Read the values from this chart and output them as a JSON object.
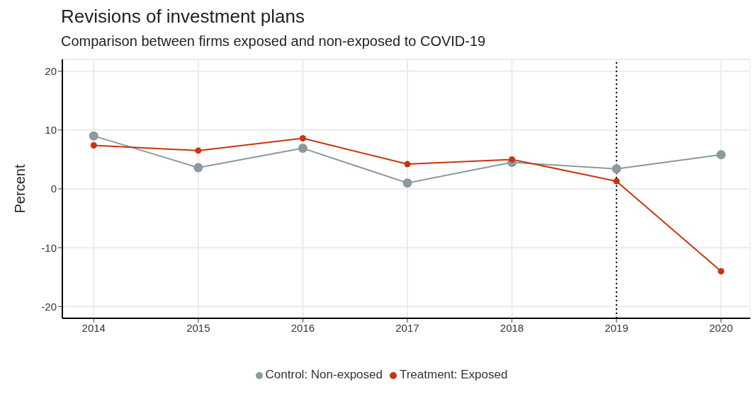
{
  "chart_data": {
    "type": "line",
    "title": "Revisions of investment plans",
    "subtitle": "Comparison between firms exposed and non-exposed to COVID-19",
    "ylabel": "Percent",
    "x": [
      2014,
      2015,
      2016,
      2017,
      2018,
      2019,
      2020
    ],
    "series": [
      {
        "name": "Control: Non-exposed",
        "color": "#8a9a9f",
        "values": [
          9.0,
          3.6,
          6.9,
          1.0,
          4.5,
          3.4,
          5.8
        ]
      },
      {
        "name": "Treatment: Exposed",
        "color": "#c8340f",
        "values": [
          7.4,
          6.5,
          8.6,
          4.2,
          5.0,
          1.3,
          -14.0
        ]
      }
    ],
    "xlim": [
      2013.7,
      2020.28
    ],
    "xticks": [
      2014,
      2015,
      2016,
      2017,
      2018,
      2019,
      2020
    ],
    "ylim": [
      -22,
      22
    ],
    "yticks": [
      -20,
      -10,
      0,
      10,
      20
    ],
    "ref_lines": [
      {
        "axis": "x",
        "value": 2019,
        "color": "#000000",
        "line_style": "dotted"
      }
    ],
    "grid": true,
    "legend": "bottom",
    "marker": "circle",
    "line_style": "solid"
  }
}
